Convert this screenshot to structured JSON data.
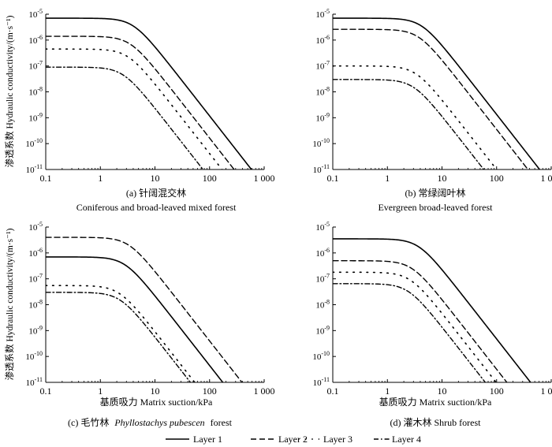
{
  "chart_data": [
    {
      "type": "line",
      "title": "(a) 针阔混交林",
      "subtitle": "Coniferous and broad-leaved mixed forest",
      "xlabel": "",
      "ylabel": "渗透系数 Hydraulic conductivity/(m·s⁻¹)",
      "xscale": "log",
      "yscale": "log",
      "xlim": [
        0.1,
        1000
      ],
      "ylim": [
        1e-11,
        1e-05
      ],
      "series": [
        {
          "name": "Layer 1",
          "ks": 7e-06,
          "h0": 4.0,
          "slope": 2.7
        },
        {
          "name": "Layer 2",
          "ks": 1.4e-06,
          "h0": 3.5,
          "slope": 2.7
        },
        {
          "name": "Layer 3",
          "ks": 4.5e-07,
          "h0": 3.2,
          "slope": 2.7
        },
        {
          "name": "Layer 4",
          "ks": 9e-08,
          "h0": 2.6,
          "slope": 2.7
        }
      ]
    },
    {
      "type": "line",
      "title": "(b) 常绿阔叶林",
      "subtitle": "Evergreen broad-leaved forest",
      "xlabel": "",
      "ylabel": "",
      "xscale": "log",
      "yscale": "log",
      "xlim": [
        0.1,
        1000
      ],
      "ylim": [
        1e-11,
        1e-05
      ],
      "series": [
        {
          "name": "Layer 1",
          "ks": 7e-06,
          "h0": 4.2,
          "slope": 2.7
        },
        {
          "name": "Layer 2",
          "ks": 2.6e-06,
          "h0": 3.7,
          "slope": 2.7
        },
        {
          "name": "Layer 3",
          "ks": 1e-07,
          "h0": 3.3,
          "slope": 2.7
        },
        {
          "name": "Layer 4",
          "ks": 3e-08,
          "h0": 3.0,
          "slope": 2.7
        }
      ]
    },
    {
      "type": "line",
      "title": "(c) 毛竹林",
      "title_italic": "Phyllostachys pubescen",
      "title_suffix": "forest",
      "xlabel": "基质吸力 Matrix suction/kPa",
      "ylabel": "渗透系数 Hydraulic conductivity/(m·s⁻¹)",
      "xscale": "log",
      "yscale": "log",
      "xlim": [
        0.1,
        1000
      ],
      "ylim": [
        1e-11,
        1e-05
      ],
      "series": [
        {
          "name": "Layer 1",
          "ks": 7e-07,
          "h0": 2.8,
          "slope": 2.7
        },
        {
          "name": "Layer 2",
          "ks": 4e-06,
          "h0": 3.3,
          "slope": 2.7
        },
        {
          "name": "Layer 3",
          "ks": 5.5e-08,
          "h0": 2.2,
          "slope": 2.7
        },
        {
          "name": "Layer 4",
          "ks": 3e-08,
          "h0": 2.3,
          "slope": 2.7
        }
      ]
    },
    {
      "type": "line",
      "title": "(d) 灌木林 Shrub forest",
      "xlabel": "基质吸力 Matrix suction/kPa",
      "ylabel": "",
      "xscale": "log",
      "yscale": "log",
      "xlim": [
        0.1,
        1000
      ],
      "ylim": [
        1e-11,
        1e-05
      ],
      "series": [
        {
          "name": "Layer 1",
          "ks": 3.5e-06,
          "h0": 3.7,
          "slope": 2.7
        },
        {
          "name": "Layer 2",
          "ks": 5e-07,
          "h0": 2.8,
          "slope": 2.7
        },
        {
          "name": "Layer 3",
          "ks": 1.8e-07,
          "h0": 2.6,
          "slope": 2.7
        },
        {
          "name": "Layer 4",
          "ks": 6.5e-08,
          "h0": 2.4,
          "slope": 2.7
        }
      ]
    }
  ],
  "axes": {
    "x_ticks": [
      0.1,
      1,
      10,
      100,
      1000
    ],
    "x_tick_labels": [
      "0.1",
      "1",
      "10",
      "100",
      "1 000"
    ],
    "y_tick_mantissa": "10",
    "y_tick_exponents": [
      "-5",
      "-6",
      "-7",
      "-8",
      "-9",
      "-10",
      "-11"
    ],
    "y_tick_values": [
      1e-05,
      1e-06,
      1e-07,
      1e-08,
      1e-09,
      1e-10,
      1e-11
    ]
  },
  "legend": [
    {
      "label": "Layer 1",
      "style": "solid"
    },
    {
      "label": "Layer 2",
      "style": "dashed"
    },
    {
      "label": "Layer 3",
      "style": "dotted"
    },
    {
      "label": "Layer 4",
      "style": "dashdot"
    }
  ],
  "colors": {
    "ink": "#000000",
    "background": "#ffffff"
  }
}
